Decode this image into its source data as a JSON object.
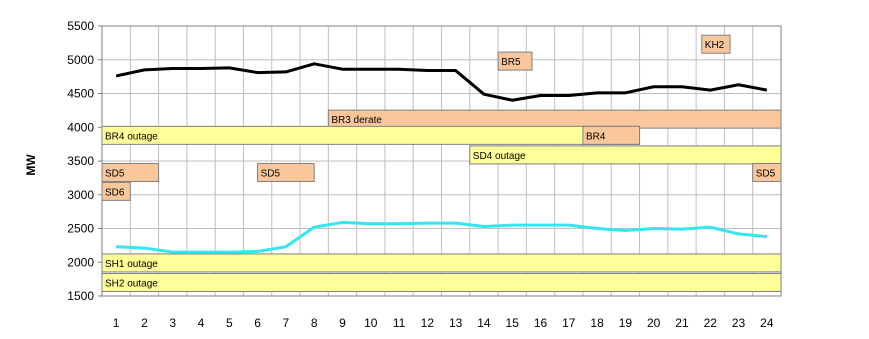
{
  "chart_data": {
    "type": "line",
    "title": "",
    "xlabel": "",
    "ylabel": "MW",
    "ylim": [
      1500,
      5500
    ],
    "yticks": [
      1500,
      2000,
      2500,
      3000,
      3500,
      4000,
      4500,
      5000,
      5500
    ],
    "categories": [
      1,
      2,
      3,
      4,
      5,
      6,
      7,
      8,
      9,
      10,
      11,
      12,
      13,
      14,
      15,
      16,
      17,
      18,
      19,
      20,
      21,
      22,
      23,
      24
    ],
    "grid": true,
    "series": [
      {
        "color": "#000000",
        "values": [
          4760,
          4850,
          4870,
          4870,
          4880,
          4810,
          4820,
          4940,
          4860,
          4860,
          4860,
          4840,
          4840,
          4490,
          4400,
          4470,
          4470,
          4510,
          4510,
          4600,
          4600,
          4550,
          4630,
          4550
        ]
      },
      {
        "color": "#33e6f2",
        "values": [
          2230,
          2210,
          2150,
          2150,
          2150,
          2160,
          2230,
          2520,
          2590,
          2570,
          2570,
          2580,
          2580,
          2530,
          2550,
          2550,
          2550,
          2500,
          2470,
          2500,
          2490,
          2520,
          2420,
          2380
        ]
      }
    ],
    "events": [
      {
        "label": "BR3 derate",
        "start": 8.5,
        "end": 24.5,
        "level": 4120,
        "color": "#f9c79b"
      },
      {
        "label": "BR4 outage",
        "start": 0.5,
        "end": 19.5,
        "level": 3880,
        "color": "#ffff99"
      },
      {
        "label": "BR4",
        "start": 17.5,
        "end": 19.5,
        "level": 3880,
        "color": "#f9c79b"
      },
      {
        "label": "SD4 outage",
        "start": 13.5,
        "end": 24.5,
        "level": 3590,
        "color": "#ffff99"
      },
      {
        "label": "SD5",
        "start": 0.5,
        "end": 2.5,
        "level": 3330,
        "color": "#f9c79b"
      },
      {
        "label": "SD6",
        "start": 0.5,
        "end": 1.5,
        "level": 3050,
        "color": "#f9c79b"
      },
      {
        "label": "SD5",
        "start": 6.0,
        "end": 8.0,
        "level": 3330,
        "color": "#f9c79b"
      },
      {
        "label": "SD5",
        "start": 23.5,
        "end": 24.5,
        "level": 3330,
        "color": "#f9c79b"
      },
      {
        "label": "BR5",
        "start": 14.5,
        "end": 15.7,
        "level": 4980,
        "color": "#f9c79b"
      },
      {
        "label": "KH2",
        "start": 21.7,
        "end": 22.7,
        "level": 5230,
        "color": "#f9c79b"
      },
      {
        "label": "SH1 outage",
        "start": 0.5,
        "end": 24.5,
        "level": 1990,
        "color": "#ffff99"
      },
      {
        "label": "SH2 outage",
        "start": 0.5,
        "end": 24.5,
        "level": 1700,
        "color": "#ffff99"
      }
    ]
  }
}
